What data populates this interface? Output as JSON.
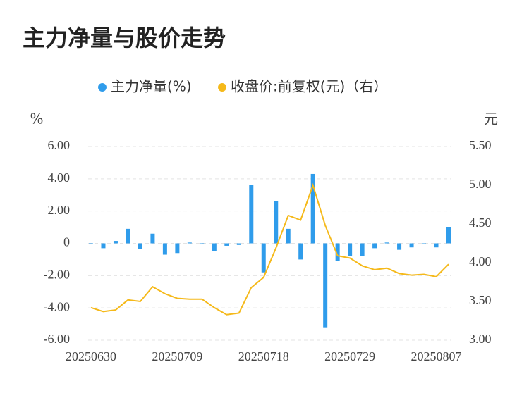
{
  "chart_data": {
    "type": "bar-line",
    "title": "主力净量与股价走势",
    "y_label": "%",
    "y2_label": "元",
    "categories": [
      "20250630",
      null,
      null,
      null,
      null,
      null,
      null,
      "20250709",
      null,
      null,
      null,
      null,
      null,
      null,
      "20250718",
      null,
      null,
      null,
      null,
      null,
      null,
      "20250729",
      null,
      null,
      null,
      null,
      null,
      null,
      "20250807",
      null
    ],
    "series": [
      {
        "name": "主力净量(%)",
        "type": "bar",
        "color": "#2f9ceb",
        "axis": "y",
        "values": [
          0.02,
          -0.3,
          0.15,
          0.9,
          -0.35,
          0.6,
          -0.7,
          -0.6,
          0.05,
          -0.05,
          -0.5,
          -0.15,
          -0.1,
          3.6,
          -1.8,
          2.6,
          0.9,
          -1.0,
          4.3,
          -5.2,
          -1.1,
          -0.8,
          -0.8,
          -0.3,
          0.05,
          -0.4,
          -0.25,
          -0.05,
          -0.25,
          1.0
        ]
      },
      {
        "name": "收盘价:前复权(元)（右）",
        "type": "line",
        "color": "#f5b91a",
        "axis": "y2",
        "values": [
          3.42,
          3.37,
          3.39,
          3.52,
          3.5,
          3.69,
          3.6,
          3.54,
          3.53,
          3.53,
          3.42,
          3.33,
          3.35,
          3.68,
          3.81,
          4.19,
          4.61,
          4.55,
          5.0,
          4.48,
          4.09,
          4.06,
          3.96,
          3.91,
          3.93,
          3.86,
          3.84,
          3.85,
          3.82,
          3.98
        ]
      }
    ],
    "ylim": [
      -6,
      6
    ],
    "yticks": [
      {
        "value": 6,
        "label": "6.00"
      },
      {
        "value": 4,
        "label": "4.00"
      },
      {
        "value": 2,
        "label": "2.00"
      },
      0,
      {
        "value": -2,
        "label": "-2.00"
      },
      {
        "value": -4,
        "label": "-4.00"
      },
      {
        "value": -6,
        "label": "-6.00"
      }
    ],
    "y2lim": [
      3,
      5.5
    ],
    "y2ticks": [
      {
        "value": 5.5,
        "label": "5.50"
      },
      {
        "value": 5,
        "label": "5.00"
      },
      {
        "value": 4.5,
        "label": "4.50"
      },
      {
        "value": 4,
        "label": "4.00"
      },
      {
        "value": 3.5,
        "label": "3.50"
      },
      {
        "value": 3,
        "label": "3.00"
      }
    ],
    "grid": true
  }
}
